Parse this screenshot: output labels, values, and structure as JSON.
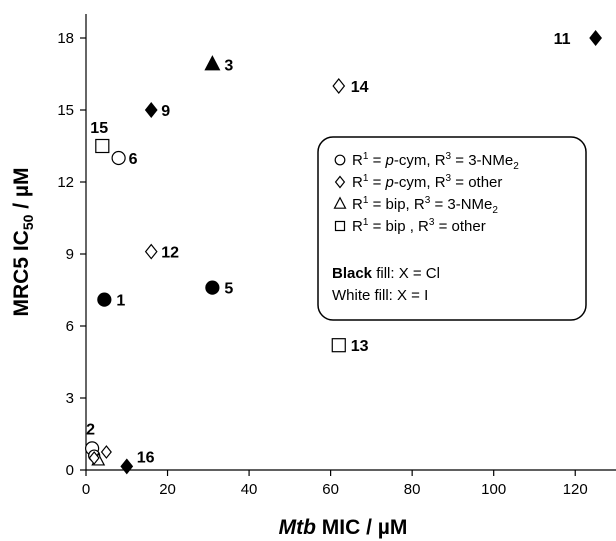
{
  "chart_data": {
    "type": "scatter",
    "xlabel": {
      "italic": "Mtb",
      "rest": " MIC / µM"
    },
    "ylabel": {
      "pre": "MRC5 IC",
      "sub": "50",
      "post": " / µM"
    },
    "xlim": [
      0,
      130
    ],
    "ylim": [
      0,
      19
    ],
    "xticks": [
      0,
      20,
      40,
      60,
      80,
      100,
      120
    ],
    "yticks": [
      0,
      3,
      6,
      9,
      12,
      15,
      18
    ],
    "grid": false,
    "legend_position": "right",
    "points": [
      {
        "label": "11",
        "x": 125,
        "y": 18.0,
        "marker": "diamond",
        "fill": "black"
      },
      {
        "label": "3",
        "x": 31,
        "y": 16.9,
        "marker": "triangle",
        "fill": "black"
      },
      {
        "label": "14",
        "x": 62,
        "y": 16.0,
        "marker": "diamond",
        "fill": "white"
      },
      {
        "label": "9",
        "x": 16,
        "y": 15.0,
        "marker": "diamond",
        "fill": "black"
      },
      {
        "label": "15",
        "x": 4,
        "y": 13.5,
        "marker": "square",
        "fill": "white"
      },
      {
        "label": "6",
        "x": 8,
        "y": 13.0,
        "marker": "circle",
        "fill": "white"
      },
      {
        "label": "12",
        "x": 16,
        "y": 9.1,
        "marker": "diamond",
        "fill": "white"
      },
      {
        "label": "5",
        "x": 31,
        "y": 7.6,
        "marker": "circle",
        "fill": "black"
      },
      {
        "label": "1",
        "x": 4.5,
        "y": 7.1,
        "marker": "circle",
        "fill": "black"
      },
      {
        "label": "13",
        "x": 62,
        "y": 5.2,
        "marker": "square",
        "fill": "white"
      },
      {
        "label": "16",
        "x": 10,
        "y": 0.15,
        "marker": "diamond",
        "fill": "black"
      },
      {
        "label": "2",
        "x": 1.5,
        "y": 0.9,
        "marker": "circle",
        "fill": "white"
      },
      {
        "label": "",
        "x": 2,
        "y": 0.6,
        "marker": "circle",
        "fill": "white"
      },
      {
        "label": "",
        "x": 3,
        "y": 0.4,
        "marker": "triangle",
        "fill": "white"
      },
      {
        "label": "",
        "x": 2,
        "y": 0.5,
        "marker": "diamond",
        "fill": "white"
      },
      {
        "label": "",
        "x": 5,
        "y": 0.75,
        "marker": "diamond",
        "fill": "white"
      }
    ],
    "legend": {
      "entries": [
        {
          "marker": "circle",
          "r1": "R",
          "r1_sup": "1",
          "eq": " = ",
          "r1_val_italic": "p",
          "r1_val_rest": "-cym, ",
          "r3": "R",
          "r3_sup": "3",
          "r3_eq": " = 3-NMe",
          "r3_sub": "2"
        },
        {
          "marker": "diamond",
          "r1": "R",
          "r1_sup": "1",
          "eq": " = ",
          "r1_val_italic": "p",
          "r1_val_rest": "-cym, ",
          "r3": "R",
          "r3_sup": "3",
          "r3_eq": " = other",
          "r3_sub": ""
        },
        {
          "marker": "triangle",
          "r1": "R",
          "r1_sup": "1",
          "eq": " = ",
          "r1_val_italic": "",
          "r1_val_rest": "bip, ",
          "r3": "R",
          "r3_sup": "3",
          "r3_eq": " = 3-NMe",
          "r3_sub": "2"
        },
        {
          "marker": "square",
          "r1": "R",
          "r1_sup": "1",
          "eq": " = ",
          "r1_val_italic": "",
          "r1_val_rest": "bip , ",
          "r3": "R",
          "r3_sup": "3",
          "r3_eq": " = other",
          "r3_sub": ""
        }
      ],
      "fill_black_bold": "Black",
      "fill_black_rest": " fill: X = Cl",
      "fill_white": "White fill: X = I"
    }
  }
}
